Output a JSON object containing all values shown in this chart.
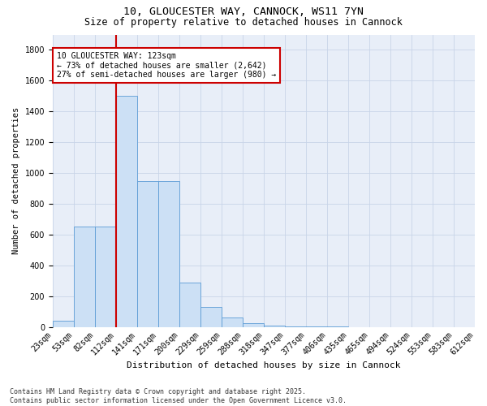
{
  "title": "10, GLOUCESTER WAY, CANNOCK, WS11 7YN",
  "subtitle": "Size of property relative to detached houses in Cannock",
  "xlabel": "Distribution of detached houses by size in Cannock",
  "ylabel": "Number of detached properties",
  "categories": [
    "23sqm",
    "53sqm",
    "82sqm",
    "112sqm",
    "141sqm",
    "171sqm",
    "200sqm",
    "229sqm",
    "259sqm",
    "288sqm",
    "318sqm",
    "347sqm",
    "377sqm",
    "406sqm",
    "435sqm",
    "465sqm",
    "494sqm",
    "524sqm",
    "553sqm",
    "583sqm",
    "612sqm"
  ],
  "bar_vals": [
    40,
    650,
    650,
    1500,
    950,
    950,
    290,
    130,
    60,
    25,
    10,
    5,
    2,
    1,
    0,
    0,
    0,
    0,
    0,
    0
  ],
  "bar_color": "#cce0f5",
  "bar_edge_color": "#5b9bd5",
  "vline_pos": 3,
  "vline_color": "#cc0000",
  "annotation_text": "10 GLOUCESTER WAY: 123sqm\n← 73% of detached houses are smaller (2,642)\n27% of semi-detached houses are larger (980) →",
  "annotation_box_color": "#ffffff",
  "annotation_box_edge": "#cc0000",
  "ylim": [
    0,
    1900
  ],
  "yticks": [
    0,
    200,
    400,
    600,
    800,
    1000,
    1200,
    1400,
    1600,
    1800
  ],
  "grid_color": "#c8d4e8",
  "bg_color": "#e8eef8",
  "footer": "Contains HM Land Registry data © Crown copyright and database right 2025.\nContains public sector information licensed under the Open Government Licence v3.0.",
  "title_fontsize": 9.5,
  "subtitle_fontsize": 8.5,
  "xlabel_fontsize": 8,
  "ylabel_fontsize": 7.5,
  "tick_fontsize": 7,
  "annotation_fontsize": 7,
  "footer_fontsize": 6
}
